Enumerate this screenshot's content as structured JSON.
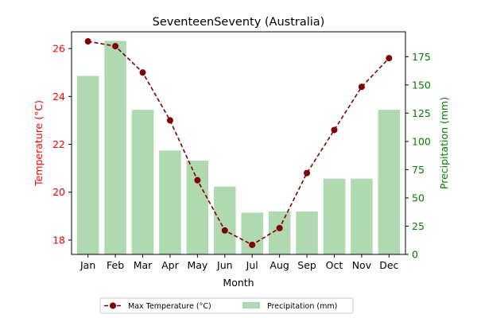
{
  "chart_data": {
    "type": "bar+line",
    "title": "SeventeenSeventy (Australia)",
    "xlabel": "Month",
    "ylabel_left": "Temperature (°C)",
    "ylabel_right": "Precipitation (mm)",
    "categories": [
      "Jan",
      "Feb",
      "Mar",
      "Apr",
      "May",
      "Jun",
      "Jul",
      "Aug",
      "Sep",
      "Oct",
      "Nov",
      "Dec"
    ],
    "ylim_left": [
      17.4,
      26.7
    ],
    "ylim_right": [
      0,
      197
    ],
    "yticks_left": [
      18,
      20,
      22,
      24,
      26
    ],
    "yticks_right": [
      0,
      25,
      50,
      75,
      100,
      125,
      150,
      175
    ],
    "grid": false,
    "legend_position": "bottom-center",
    "series": [
      {
        "name": "Max Temperature (°C)",
        "type": "line",
        "axis": "left",
        "color": "#800000",
        "line_style": "dashed",
        "marker": "circle",
        "values": [
          26.3,
          26.1,
          25.0,
          23.0,
          20.5,
          18.4,
          17.8,
          18.5,
          20.8,
          22.6,
          24.4,
          25.6
        ]
      },
      {
        "name": "Precipitation (mm)",
        "type": "bar",
        "axis": "right",
        "color": "#b0d9b1",
        "values": [
          158,
          189,
          128,
          92,
          83,
          60,
          37,
          38,
          38,
          67,
          67,
          128
        ]
      }
    ],
    "left_axis_color": "#ff0000",
    "right_axis_color": "#008000"
  }
}
